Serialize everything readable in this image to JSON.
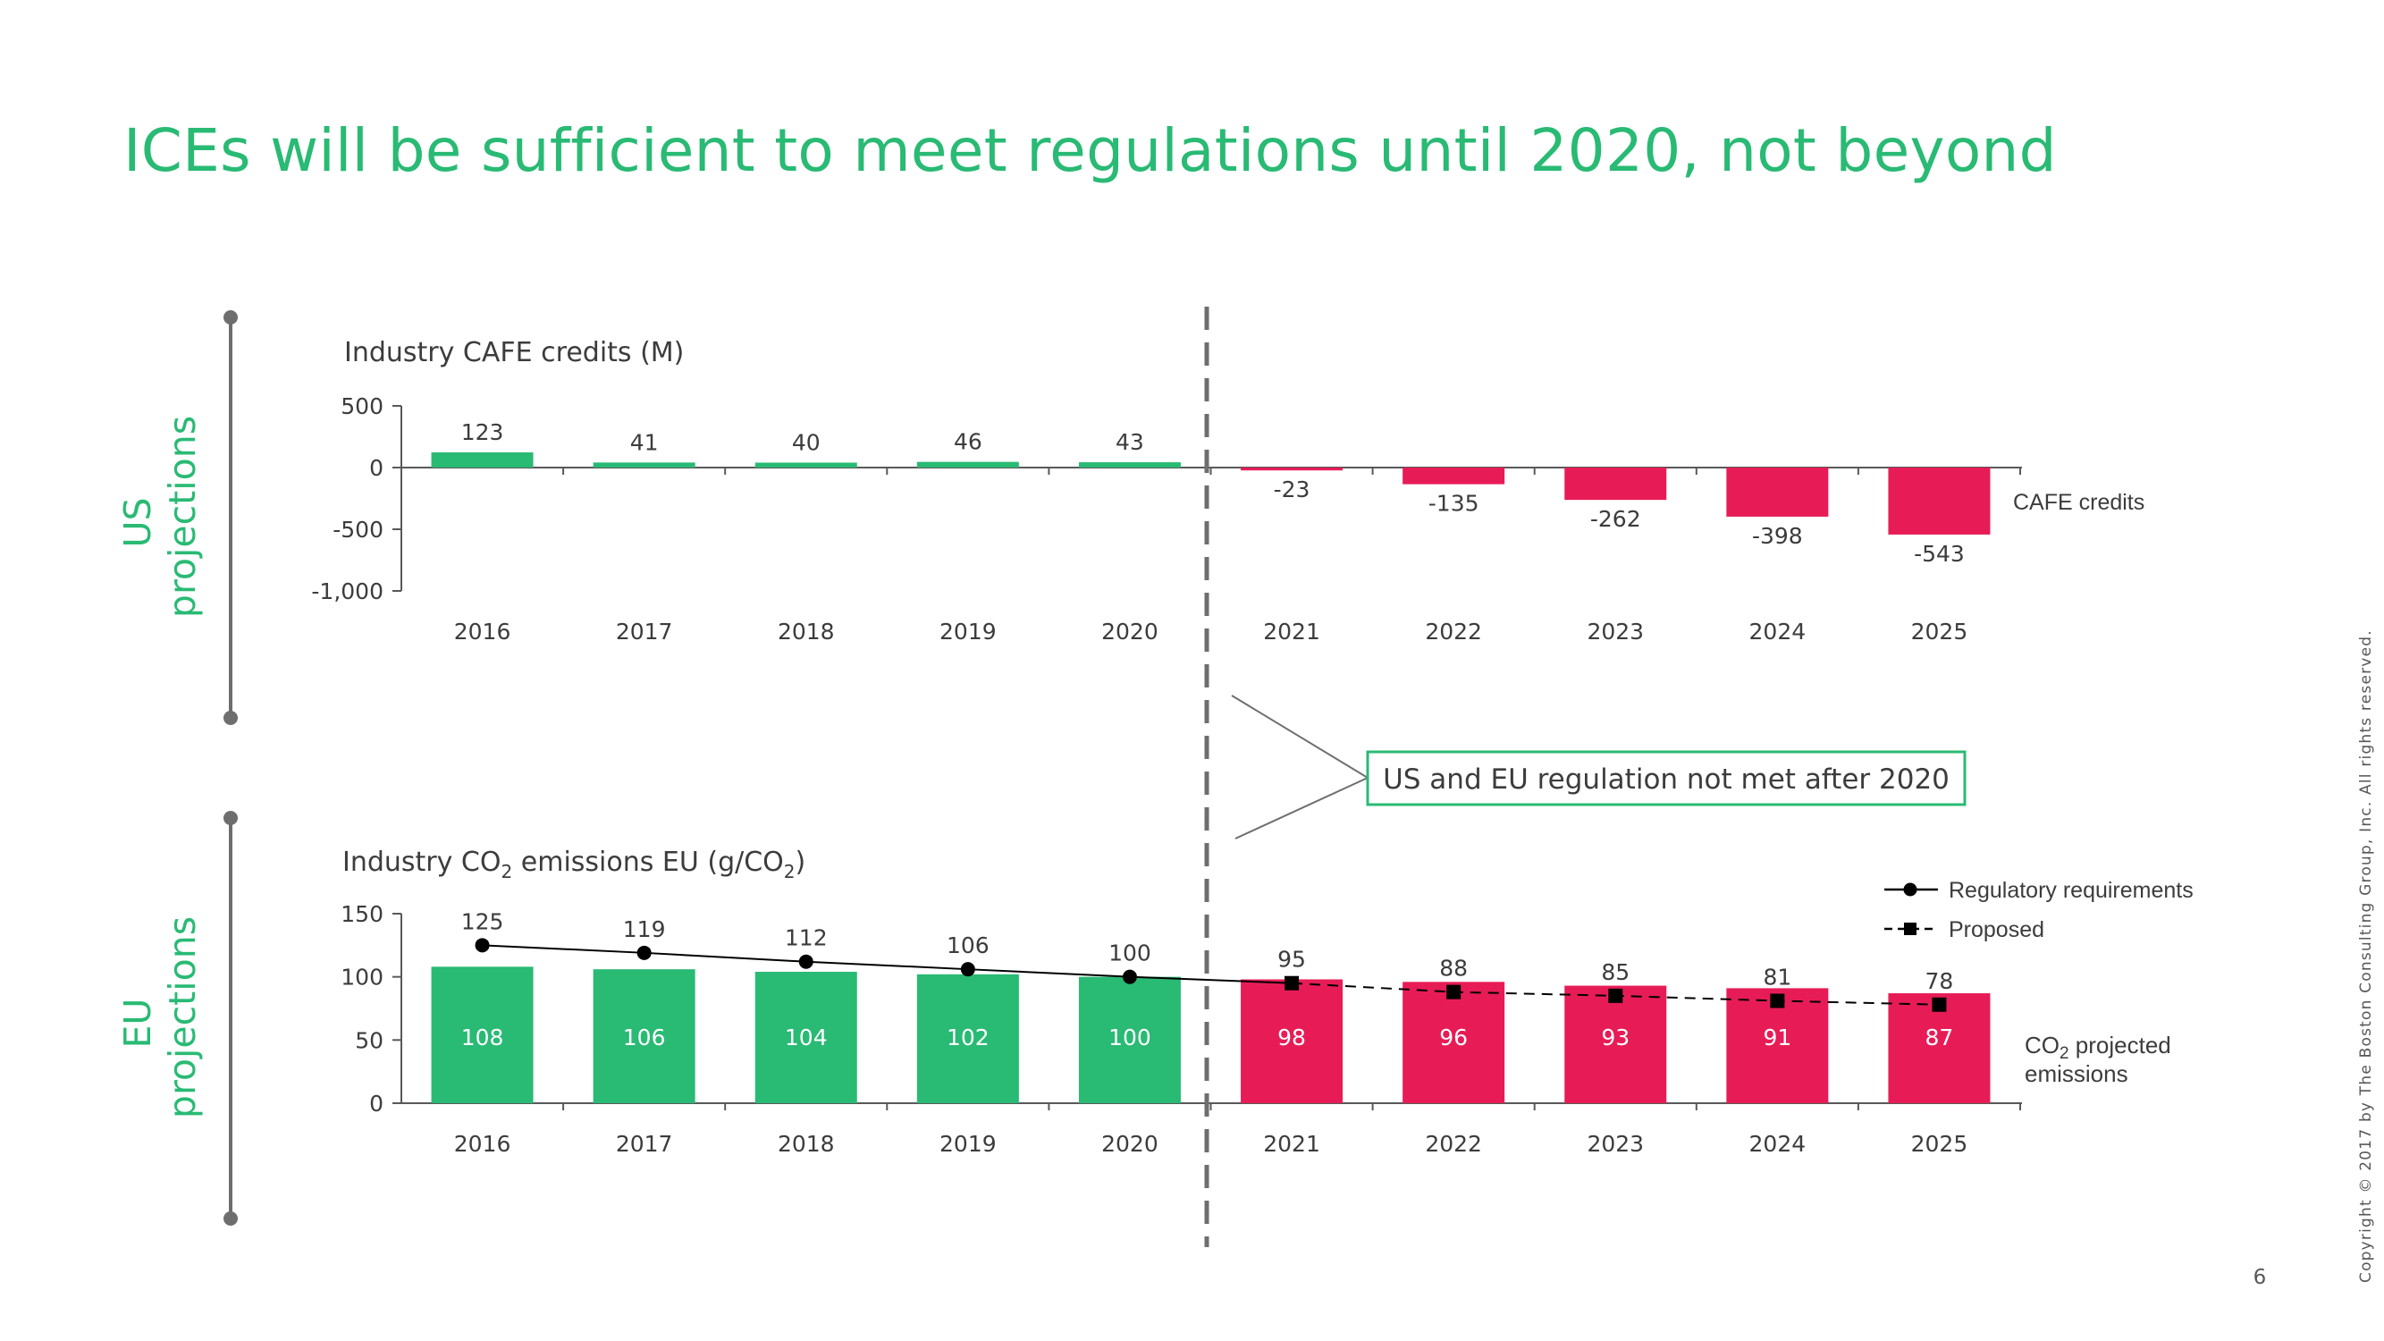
{
  "title": "ICEs will be sufficient to meet regulations until 2020, not beyond",
  "sections": {
    "us_label": [
      "US",
      "projections"
    ],
    "eu_label": [
      "EU",
      "projections"
    ]
  },
  "callout": "US and EU regulation not met after 2020",
  "page_number": "6",
  "copyright": "Copyright © 2017 by The Boston Consulting Group, Inc. All rights reserved.",
  "colors": {
    "green": "#29ba74",
    "red": "#e71c57",
    "text": "#3c3c3c",
    "axis": "#595959",
    "bracket": "#6e6e6e"
  },
  "chart_data": [
    {
      "type": "bar",
      "title": "Industry CAFE credits (M)",
      "categories": [
        "2016",
        "2017",
        "2018",
        "2019",
        "2020",
        "2021",
        "2022",
        "2023",
        "2024",
        "2025"
      ],
      "series": [
        {
          "name": "CAFE credits",
          "values": [
            123,
            41,
            40,
            46,
            43,
            -23,
            -135,
            -262,
            -398,
            -543
          ]
        }
      ],
      "value_labels": [
        "123",
        "41",
        "40",
        "46",
        "43",
        "-23",
        "-135",
        "-262",
        "-398",
        "-543"
      ],
      "yticks": [
        "500",
        "0",
        "-500",
        "-1,000"
      ],
      "ylim": [
        -1000,
        500
      ],
      "grid": false,
      "legend": "right"
    },
    {
      "type": "bar",
      "title_parts": [
        "Industry CO",
        "2",
        " emissions EU (g/CO",
        "2",
        ")"
      ],
      "categories": [
        "2016",
        "2017",
        "2018",
        "2019",
        "2020",
        "2021",
        "2022",
        "2023",
        "2024",
        "2025"
      ],
      "series": [
        {
          "name_parts": [
            "CO",
            "2",
            " projected",
            "emissions"
          ],
          "values": [
            108,
            106,
            104,
            102,
            100,
            98,
            96,
            93,
            91,
            87
          ]
        },
        {
          "name": "Regulatory requirements",
          "type": "line",
          "x": [
            "2016",
            "2017",
            "2018",
            "2019",
            "2020",
            "2021"
          ],
          "values": [
            125,
            119,
            112,
            106,
            100,
            95
          ]
        },
        {
          "name": "Proposed",
          "type": "line-dashed",
          "x": [
            "2021",
            "2022",
            "2023",
            "2024",
            "2025"
          ],
          "values": [
            95,
            88,
            85,
            81,
            78
          ]
        }
      ],
      "line_labels": [
        "125",
        "119",
        "112",
        "106",
        "100",
        "95",
        "88",
        "85",
        "81",
        "78"
      ],
      "yticks": [
        "150",
        "100",
        "50",
        "0"
      ],
      "ylim": [
        0,
        150
      ],
      "grid": false,
      "legend": "top-right"
    }
  ]
}
